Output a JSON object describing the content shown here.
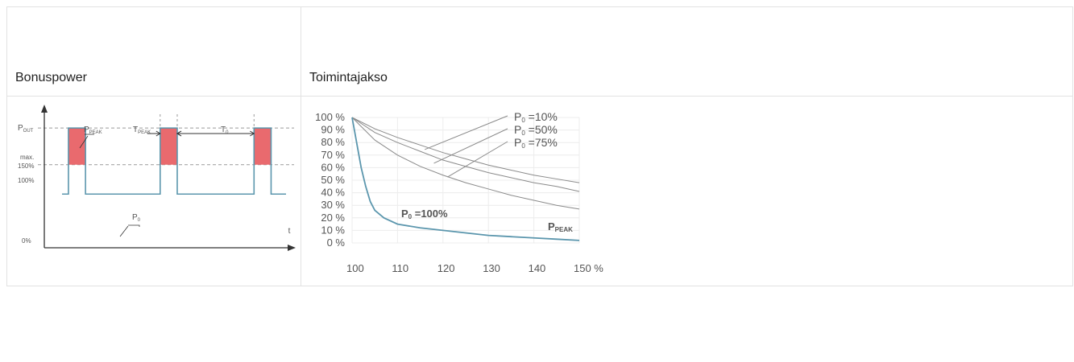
{
  "headers": {
    "bonuspower": "Bonuspower",
    "duty_cycle": "Toimintajakso"
  },
  "colors": {
    "peak_fill": "#e96a6e",
    "signal": "#5b96ad",
    "axis": "#333333",
    "dash": "#9a9a9a",
    "guide": "#8a8a8a",
    "grid": "#ececec",
    "text": "#555555"
  },
  "chart_data": [
    {
      "type": "line",
      "labels": {
        "pout_main": "P",
        "pout_sub": "OUT",
        "ppeak_main": "P",
        "ppeak_sub": "PEAK",
        "tpeak_main": "T",
        "tpeak_sub": "PEAK",
        "t0_main": "T",
        "t0_sub": "0",
        "p0_main": "P",
        "p0_sub": "0",
        "t_axis": "t",
        "max_label": "max.",
        "level150": "150%",
        "level100": "100%",
        "level0": "0%"
      },
      "x": [
        0,
        0.3,
        0.3,
        1.1,
        1.1,
        4.6,
        4.6,
        5.4,
        5.4,
        9.0,
        9.0,
        9.8,
        9.8,
        10.5
      ],
      "y": [
        60,
        60,
        150,
        150,
        60,
        60,
        150,
        150,
        60,
        60,
        150,
        150,
        60,
        60
      ],
      "peaks": [
        [
          0.3,
          1.1
        ],
        [
          4.6,
          5.4
        ],
        [
          9.0,
          9.8
        ]
      ],
      "levels": {
        "base": 60,
        "nominal": 100,
        "max": 150
      },
      "xlim": [
        0,
        10.5
      ],
      "ylim": [
        0,
        160
      ]
    },
    {
      "type": "line",
      "xlim": [
        100,
        150
      ],
      "ylim": [
        0,
        100
      ],
      "x_ticks": [
        "100",
        "110",
        "120",
        "130",
        "140",
        "150 %"
      ],
      "y_ticks": [
        "100 %",
        "90 %",
        "80 %",
        "70 %",
        "60 %",
        "50 %",
        "40 %",
        "30 %",
        "20 %",
        "10 %",
        "0 %"
      ],
      "grid": true,
      "legend_labels": [
        {
          "main": "P",
          "sub": "0",
          "text": " =10%"
        },
        {
          "main": "P",
          "sub": "0",
          "text": " =50%"
        },
        {
          "main": "P",
          "sub": "0",
          "text": " =75%"
        }
      ],
      "label_p100": {
        "main": "P",
        "sub": "0",
        "text": " =100%"
      },
      "label_ppeak": {
        "main": "P",
        "sub": "PEAK"
      },
      "series": [
        {
          "x": [
            100,
            105,
            110,
            115,
            120,
            125,
            130,
            135,
            140,
            145,
            150
          ],
          "y": [
            100,
            91,
            84,
            78,
            72,
            67,
            62,
            58,
            54,
            51,
            48
          ]
        },
        {
          "x": [
            100,
            105,
            110,
            115,
            120,
            125,
            130,
            135,
            140,
            145,
            150
          ],
          "y": [
            100,
            88,
            80,
            73,
            66,
            61,
            56,
            52,
            48,
            45,
            41
          ]
        },
        {
          "x": [
            100,
            105,
            110,
            115,
            120,
            125,
            130,
            135,
            140,
            145,
            150
          ],
          "y": [
            100,
            82,
            70,
            61,
            54,
            48,
            43,
            38,
            34,
            30,
            27
          ]
        },
        {
          "x": [
            100,
            101,
            102,
            103,
            104,
            105,
            107,
            110,
            115,
            120,
            125,
            130,
            135,
            140,
            145,
            150
          ],
          "y": [
            100,
            80,
            60,
            45,
            33,
            26,
            20,
            15,
            12,
            10,
            8,
            6,
            5,
            4,
            3,
            2
          ]
        }
      ]
    }
  ]
}
